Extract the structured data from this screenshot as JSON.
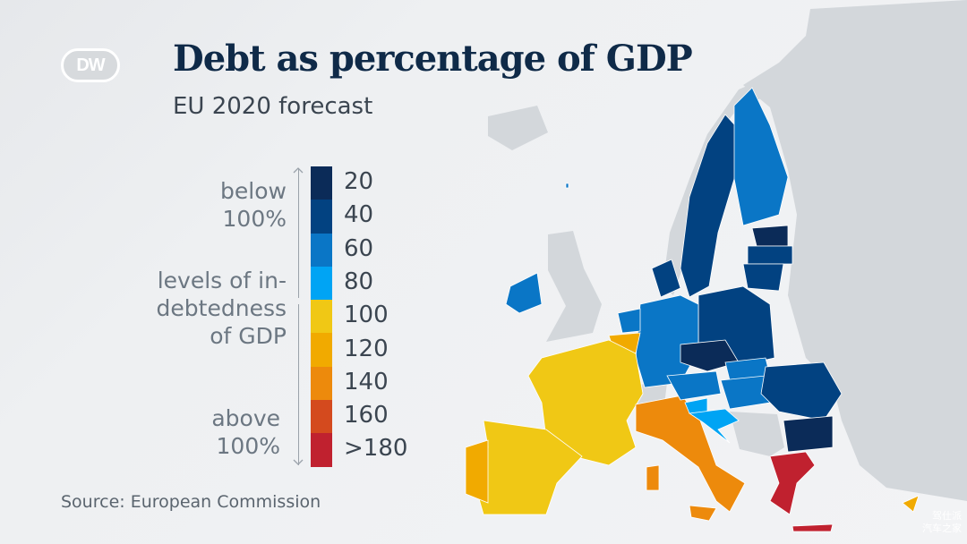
{
  "header": {
    "logo": "DW",
    "title": "Debt as percentage of GDP",
    "subtitle": "EU 2020 forecast"
  },
  "legend": {
    "below_label_1": "below",
    "below_label_2": "100%",
    "middle_label_1": "levels of in-",
    "middle_label_2": "debtedness",
    "middle_label_3": "of GDP",
    "above_label_1": "above",
    "above_label_2": "100%",
    "bins": [
      {
        "label": "20",
        "color": "#0b2b58"
      },
      {
        "label": "40",
        "color": "#024281"
      },
      {
        "label": "60",
        "color": "#0a76c6"
      },
      {
        "label": "80",
        "color": "#00a4f4"
      },
      {
        "label": "100",
        "color": "#f0c815"
      },
      {
        "label": "120",
        "color": "#f1aa00"
      },
      {
        "label": "140",
        "color": "#ed8a0c"
      },
      {
        "label": "160",
        "color": "#d44a1e"
      },
      {
        "label": ">180",
        "color": "#c0212f"
      }
    ]
  },
  "colors": {
    "non_eu_land": "#d3d7db",
    "sea": "#eef0f2"
  },
  "footer": {
    "source": "Source: European Commission"
  },
  "watermark": {
    "line1": "驾仕派",
    "line2": "汽车之家"
  }
}
